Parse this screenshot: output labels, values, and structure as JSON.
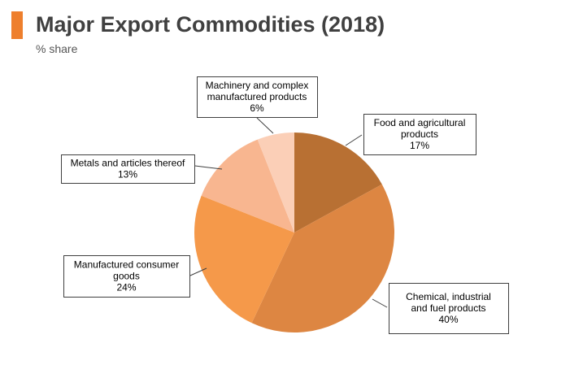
{
  "header": {
    "title": "Major Export Commodities (2018)",
    "subtitle": "% share",
    "accent_color": "#ee7f2d"
  },
  "chart_data": {
    "type": "pie",
    "title": "Major Export Commodities (2018)",
    "subtitle": "% share",
    "start_angle_deg": 0,
    "direction": "clockwise",
    "slices": [
      {
        "label": "Food and agricultural products",
        "value": 17,
        "color": "#b87033",
        "label_lines": [
          "Food and agricultural",
          "products",
          "17%"
        ]
      },
      {
        "label": "Chemical, industrial and fuel products",
        "value": 40,
        "color": "#dd8642",
        "label_lines": [
          "Chemical, industrial",
          "and fuel products",
          "40%"
        ]
      },
      {
        "label": "Manufactured consumer goods",
        "value": 24,
        "color": "#f5994a",
        "label_lines": [
          "Manufactured consumer",
          "goods",
          "24%"
        ]
      },
      {
        "label": "Metals and articles thereof",
        "value": 13,
        "color": "#f8b690",
        "label_lines": [
          "Metals and articles thereof",
          "13%"
        ]
      },
      {
        "label": "Machinery and complex manufactured products",
        "value": 6,
        "color": "#fbcfb7",
        "label_lines": [
          "Machinery and complex",
          "manufactured products",
          "6%"
        ]
      }
    ]
  }
}
